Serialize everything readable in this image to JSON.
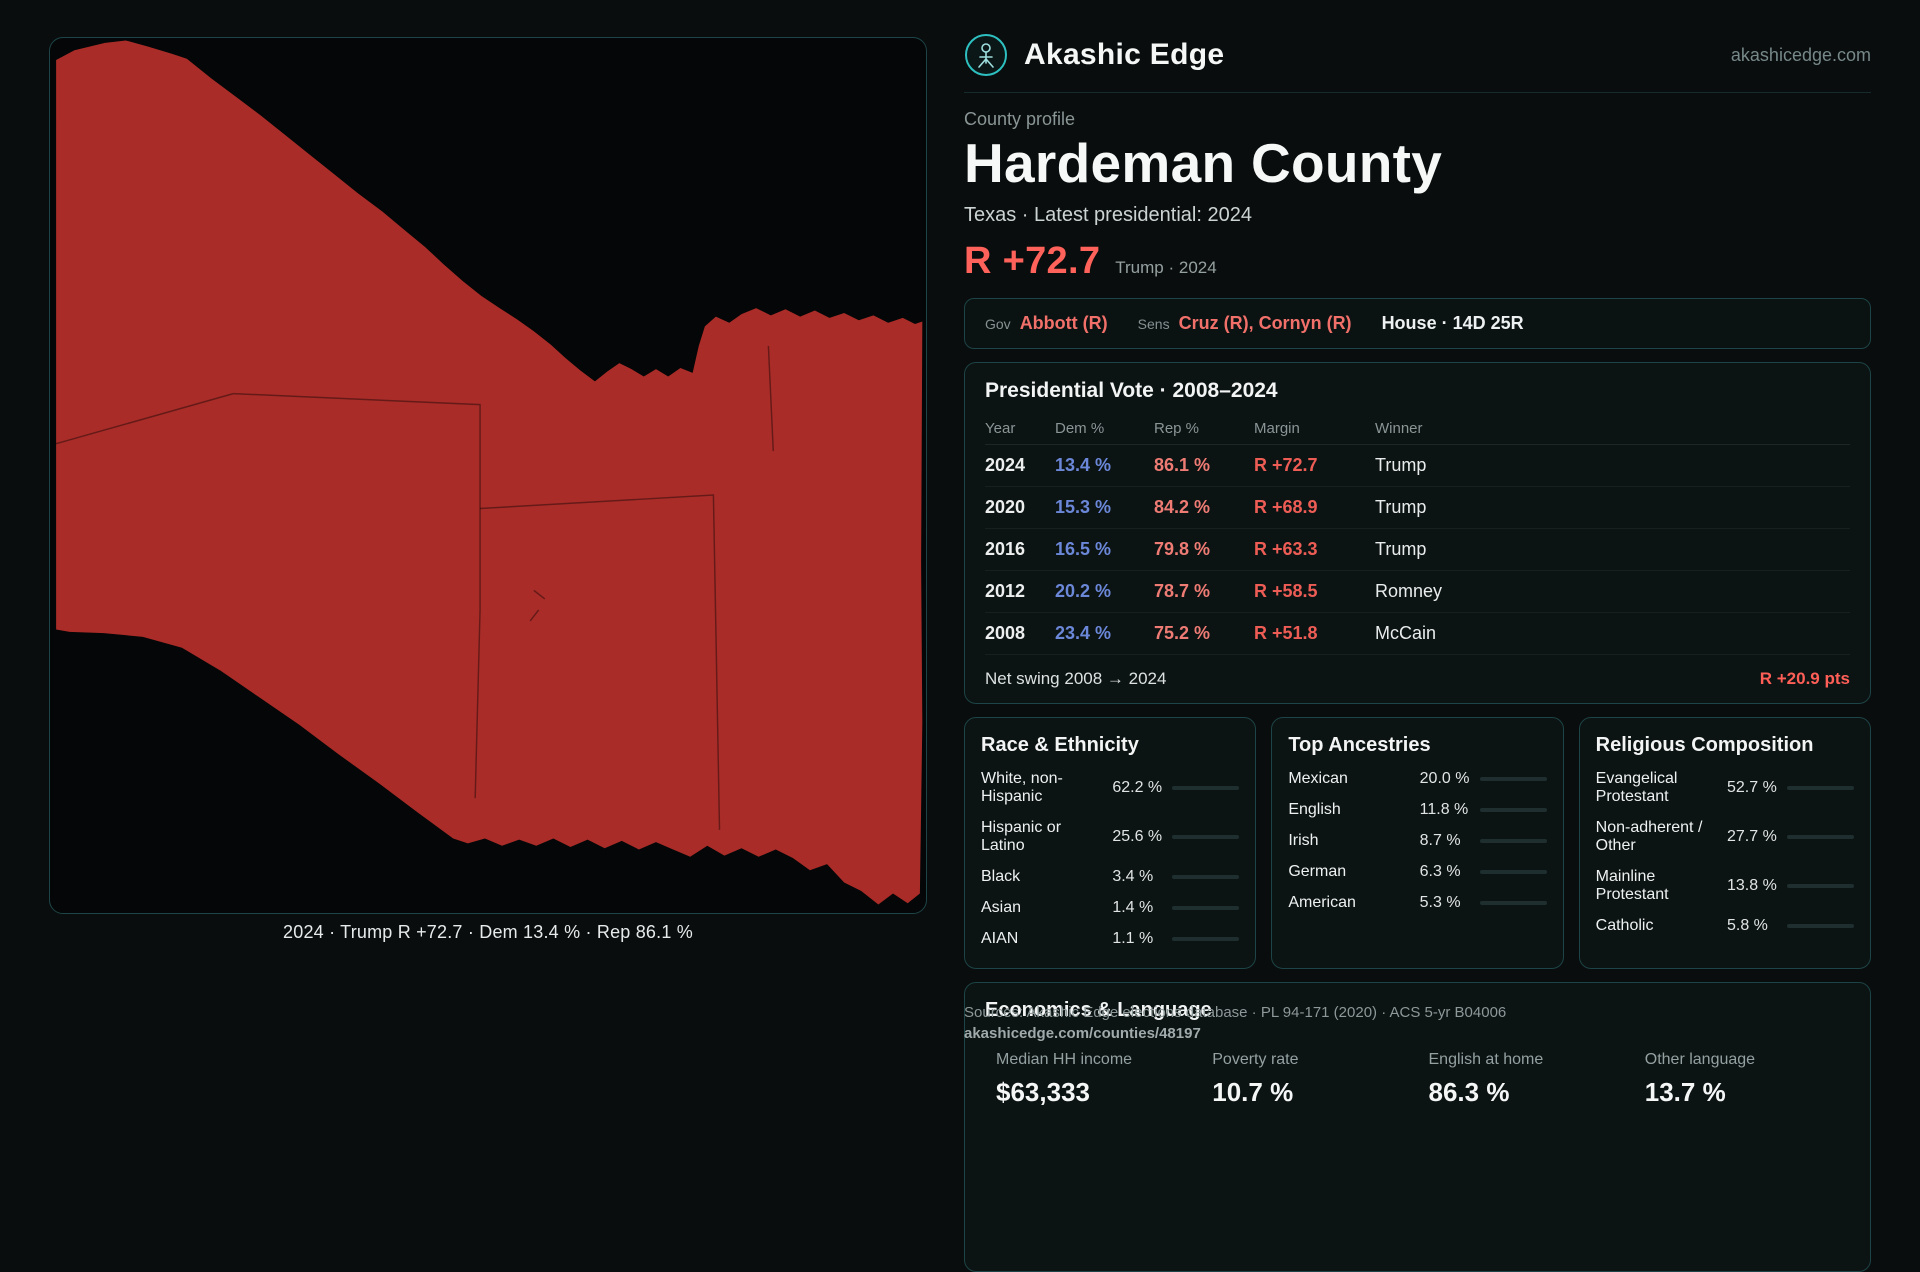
{
  "brand": {
    "name": "Akashic Edge",
    "domain": "akashicedge.com"
  },
  "profile": {
    "eyebrow": "County profile",
    "title": "Hardeman County",
    "subtitle": "Texas · Latest presidential: 2024",
    "metric": "R +72.7",
    "metric_caption": "Trump · 2024"
  },
  "officials": {
    "gov_label": "Gov",
    "gov_value": "Abbott (R)",
    "sens_label": "Sens",
    "sens_value": "Cruz (R), Cornyn (R)",
    "house_value": "House · 14D 25R"
  },
  "map": {
    "caption": "2024 · Trump R +72.7 · Dem 13.4 % · Rep 86.1 %",
    "fill_color": "#a92c28"
  },
  "presidential": {
    "title": "Presidential Vote · 2008–2024",
    "columns": [
      "Year",
      "Dem %",
      "Rep %",
      "Margin",
      "Winner"
    ],
    "rows": [
      {
        "year": "2024",
        "dem": "13.4 %",
        "rep": "86.1 %",
        "margin": "R +72.7",
        "winner": "Trump"
      },
      {
        "year": "2020",
        "dem": "15.3 %",
        "rep": "84.2 %",
        "margin": "R +68.9",
        "winner": "Trump"
      },
      {
        "year": "2016",
        "dem": "16.5 %",
        "rep": "79.8 %",
        "margin": "R +63.3",
        "winner": "Trump"
      },
      {
        "year": "2012",
        "dem": "20.2 %",
        "rep": "78.7 %",
        "margin": "R +58.5",
        "winner": "Romney"
      },
      {
        "year": "2008",
        "dem": "23.4 %",
        "rep": "75.2 %",
        "margin": "R +51.8",
        "winner": "McCain"
      }
    ],
    "net_swing_label": "Net swing 2008 → 2024",
    "net_swing_value": "R +20.9 pts"
  },
  "race": {
    "title": "Race & Ethnicity",
    "rows": [
      {
        "label": "White, non-Hispanic",
        "value": "62.2 %",
        "pct": 62.2,
        "color": "#aab4de"
      },
      {
        "label": "Hispanic or Latino",
        "value": "25.6 %",
        "pct": 25.6,
        "color": "#d9a13c"
      },
      {
        "label": "Black",
        "value": "3.4 %",
        "pct": 3.4,
        "color": "#5b7fe0"
      },
      {
        "label": "Asian",
        "value": "1.4 %",
        "pct": 1.4,
        "color": "#58c08a"
      },
      {
        "label": "AIAN",
        "value": "1.1 %",
        "pct": 1.1,
        "color": "#c3cccc"
      }
    ]
  },
  "ancestries": {
    "title": "Top Ancestries",
    "rows": [
      {
        "label": "Mexican",
        "value": "20.0 %",
        "pct": 20.0,
        "color": "#d9a13c"
      },
      {
        "label": "English",
        "value": "11.8 %",
        "pct": 11.8,
        "color": "#93a7c4"
      },
      {
        "label": "Irish",
        "value": "8.7 %",
        "pct": 8.7,
        "color": "#a9b3b3"
      },
      {
        "label": "German",
        "value": "6.3 %",
        "pct": 6.3,
        "color": "#a9b3b3"
      },
      {
        "label": "American",
        "value": "5.3 %",
        "pct": 5.3,
        "color": "#a9b3b3"
      }
    ]
  },
  "religion": {
    "title": "Religious Composition",
    "rows": [
      {
        "label": "Evangelical Protestant",
        "value": "52.7 %",
        "pct": 52.7,
        "color": "#e8837d"
      },
      {
        "label": "Non-adherent / Other",
        "value": "27.7 %",
        "pct": 27.7,
        "color": "#9aa3a3"
      },
      {
        "label": "Mainline Protestant",
        "value": "13.8 %",
        "pct": 13.8,
        "color": "#6b87d8"
      },
      {
        "label": "Catholic",
        "value": "5.8 %",
        "pct": 5.8,
        "color": "#d9a13c"
      }
    ]
  },
  "economics": {
    "title": "Economics & Language",
    "stats": [
      {
        "label": "Median HH income",
        "value": "$63,333"
      },
      {
        "label": "Poverty rate",
        "value": "10.7 %"
      },
      {
        "label": "English at home",
        "value": "86.3 %"
      },
      {
        "label": "Other language",
        "value": "13.7 %"
      }
    ]
  },
  "footer": {
    "sources": "Sources: Akashic Edge elections database · PL 94-171 (2020) · ACS 5-yr B04006",
    "permalink": "akashicedge.com/counties/48197"
  },
  "accents": {
    "republican_red": "#ee5d55",
    "democrat_blue": "#6b87d8",
    "brand_teal": "#2ec0c0",
    "background": "#0a0d0d"
  }
}
